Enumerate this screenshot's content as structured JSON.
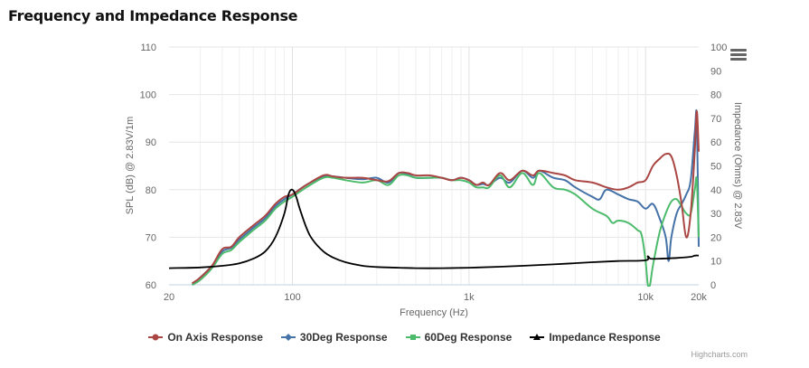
{
  "title": "Frequency and Impedance Response",
  "credits": "Highcharts.com",
  "chart_data": {
    "type": "line",
    "title": "Frequency and Impedance Response",
    "xlabel": "Frequency (Hz)",
    "x_scale": "log",
    "xlim": [
      20,
      20000
    ],
    "x_ticks": [
      20,
      100,
      1000,
      10000,
      20000
    ],
    "x_tick_labels": [
      "20",
      "100",
      "1k",
      "10k",
      "20k"
    ],
    "ylabel": "SPL (dB) @ 2.83V/1m",
    "ylim": [
      60,
      110
    ],
    "y_ticks": [
      60,
      70,
      80,
      90,
      100,
      110
    ],
    "y2label": "Impedance (Ohms) @ 2.83V",
    "y2lim": [
      0,
      100
    ],
    "y2_ticks": [
      0,
      10,
      20,
      30,
      40,
      50,
      60,
      70,
      80,
      90,
      100
    ],
    "grid": true,
    "legend_position": "bottom",
    "series": [
      {
        "name": "On Axis Response",
        "color": "#aa4643",
        "axis": "left",
        "marker": "circle",
        "points": [
          [
            27,
            60.3
          ],
          [
            30,
            61.5
          ],
          [
            35,
            64
          ],
          [
            40,
            67.5
          ],
          [
            45,
            68
          ],
          [
            50,
            70
          ],
          [
            60,
            72.5
          ],
          [
            70,
            74.5
          ],
          [
            80,
            77
          ],
          [
            90,
            78.5
          ],
          [
            100,
            79
          ],
          [
            120,
            81
          ],
          [
            150,
            83
          ],
          [
            170,
            82.8
          ],
          [
            200,
            82.5
          ],
          [
            250,
            82.5
          ],
          [
            300,
            82
          ],
          [
            350,
            81.8
          ],
          [
            400,
            83.5
          ],
          [
            450,
            83.5
          ],
          [
            500,
            83
          ],
          [
            600,
            83
          ],
          [
            700,
            82.5
          ],
          [
            800,
            82
          ],
          [
            900,
            82.5
          ],
          [
            1000,
            82
          ],
          [
            1100,
            81
          ],
          [
            1200,
            81.5
          ],
          [
            1300,
            81
          ],
          [
            1500,
            83.5
          ],
          [
            1700,
            82
          ],
          [
            2000,
            84
          ],
          [
            2300,
            83
          ],
          [
            2500,
            84
          ],
          [
            3000,
            83.5
          ],
          [
            3500,
            83
          ],
          [
            4000,
            82
          ],
          [
            5000,
            81.5
          ],
          [
            6000,
            80.5
          ],
          [
            7000,
            80
          ],
          [
            8000,
            80.5
          ],
          [
            9000,
            81.5
          ],
          [
            10000,
            82
          ],
          [
            11000,
            85
          ],
          [
            12000,
            86.5
          ],
          [
            13000,
            87.5
          ],
          [
            14000,
            87
          ],
          [
            15000,
            83
          ],
          [
            16000,
            77
          ],
          [
            17000,
            70
          ],
          [
            18000,
            75
          ],
          [
            19000,
            88
          ],
          [
            19500,
            96.5
          ],
          [
            20000,
            88
          ]
        ]
      },
      {
        "name": "30Deg Response",
        "color": "#4572a7",
        "axis": "left",
        "marker": "diamond",
        "points": [
          [
            27,
            60
          ],
          [
            30,
            61.5
          ],
          [
            35,
            64
          ],
          [
            40,
            67
          ],
          [
            45,
            67.8
          ],
          [
            50,
            69.5
          ],
          [
            60,
            72
          ],
          [
            70,
            74
          ],
          [
            80,
            76.5
          ],
          [
            90,
            78
          ],
          [
            100,
            79
          ],
          [
            120,
            81
          ],
          [
            150,
            82.8
          ],
          [
            170,
            82.8
          ],
          [
            200,
            82.5
          ],
          [
            250,
            82.2
          ],
          [
            300,
            82.5
          ],
          [
            350,
            81.5
          ],
          [
            400,
            83.5
          ],
          [
            450,
            83.2
          ],
          [
            500,
            82.5
          ],
          [
            600,
            82.5
          ],
          [
            700,
            82.5
          ],
          [
            800,
            82
          ],
          [
            900,
            82.5
          ],
          [
            1000,
            82
          ],
          [
            1100,
            81
          ],
          [
            1200,
            81.2
          ],
          [
            1300,
            81
          ],
          [
            1500,
            82.5
          ],
          [
            1700,
            81.5
          ],
          [
            2000,
            84
          ],
          [
            2300,
            82.5
          ],
          [
            2500,
            84
          ],
          [
            3000,
            82.5
          ],
          [
            3500,
            82
          ],
          [
            4000,
            80.5
          ],
          [
            5000,
            78.5
          ],
          [
            5500,
            78
          ],
          [
            6000,
            80
          ],
          [
            7000,
            79
          ],
          [
            8000,
            78
          ],
          [
            9000,
            77.5
          ],
          [
            10000,
            76
          ],
          [
            11000,
            77
          ],
          [
            12000,
            74
          ],
          [
            13000,
            70
          ],
          [
            13500,
            65
          ],
          [
            14000,
            70
          ],
          [
            15000,
            75
          ],
          [
            16000,
            77
          ],
          [
            17000,
            79
          ],
          [
            18000,
            82
          ],
          [
            19000,
            92
          ],
          [
            19500,
            95
          ],
          [
            20000,
            68
          ]
        ]
      },
      {
        "name": "60Deg Response",
        "color": "#4cbb6c",
        "axis": "left",
        "marker": "square",
        "points": [
          [
            27,
            60
          ],
          [
            30,
            61
          ],
          [
            35,
            63.5
          ],
          [
            40,
            66.5
          ],
          [
            45,
            67.3
          ],
          [
            50,
            69
          ],
          [
            60,
            71.5
          ],
          [
            70,
            73.5
          ],
          [
            80,
            76
          ],
          [
            90,
            77.5
          ],
          [
            100,
            78.5
          ],
          [
            120,
            80.5
          ],
          [
            150,
            82.5
          ],
          [
            170,
            82.5
          ],
          [
            200,
            82
          ],
          [
            250,
            81.5
          ],
          [
            300,
            82
          ],
          [
            350,
            81
          ],
          [
            400,
            83
          ],
          [
            450,
            83
          ],
          [
            500,
            82.5
          ],
          [
            600,
            82.5
          ],
          [
            700,
            82.5
          ],
          [
            800,
            82
          ],
          [
            900,
            82
          ],
          [
            1000,
            81.5
          ],
          [
            1100,
            80.5
          ],
          [
            1200,
            80.5
          ],
          [
            1300,
            80.5
          ],
          [
            1500,
            83
          ],
          [
            1700,
            80.5
          ],
          [
            2000,
            83.5
          ],
          [
            2300,
            81
          ],
          [
            2500,
            83.5
          ],
          [
            3000,
            80.5
          ],
          [
            3500,
            80
          ],
          [
            4000,
            79
          ],
          [
            5000,
            76
          ],
          [
            6000,
            74.5
          ],
          [
            6500,
            73
          ],
          [
            7000,
            73.5
          ],
          [
            8000,
            73
          ],
          [
            9000,
            71.5
          ],
          [
            9500,
            70.5
          ],
          [
            10000,
            65
          ],
          [
            10300,
            60
          ],
          [
            10600,
            60
          ],
          [
            11000,
            64
          ],
          [
            12000,
            71
          ],
          [
            13000,
            75
          ],
          [
            14000,
            77.5
          ],
          [
            15000,
            78
          ],
          [
            16000,
            76.5
          ],
          [
            17000,
            75
          ],
          [
            18000,
            75
          ],
          [
            19000,
            80
          ],
          [
            19500,
            82
          ],
          [
            20000,
            70
          ]
        ]
      },
      {
        "name": "Impedance Response",
        "color": "#000000",
        "axis": "right",
        "marker": "triangle",
        "points": [
          [
            20,
            7
          ],
          [
            30,
            7.3
          ],
          [
            40,
            8
          ],
          [
            50,
            9
          ],
          [
            60,
            11
          ],
          [
            70,
            14
          ],
          [
            80,
            20
          ],
          [
            90,
            30
          ],
          [
            95,
            38
          ],
          [
            100,
            40
          ],
          [
            105,
            37
          ],
          [
            110,
            32
          ],
          [
            120,
            24
          ],
          [
            130,
            19
          ],
          [
            150,
            14
          ],
          [
            170,
            11.5
          ],
          [
            200,
            9.5
          ],
          [
            250,
            8
          ],
          [
            300,
            7.5
          ],
          [
            400,
            7.2
          ],
          [
            500,
            7
          ],
          [
            700,
            7
          ],
          [
            1000,
            7.2
          ],
          [
            1500,
            7.6
          ],
          [
            2000,
            8
          ],
          [
            3000,
            8.6
          ],
          [
            5000,
            9.5
          ],
          [
            7000,
            10
          ],
          [
            10000,
            10.3
          ],
          [
            10300,
            12
          ],
          [
            10700,
            11
          ],
          [
            12000,
            11
          ],
          [
            15000,
            11.3
          ],
          [
            18000,
            11.8
          ],
          [
            19000,
            12.3
          ],
          [
            20000,
            12.3
          ]
        ]
      }
    ]
  }
}
